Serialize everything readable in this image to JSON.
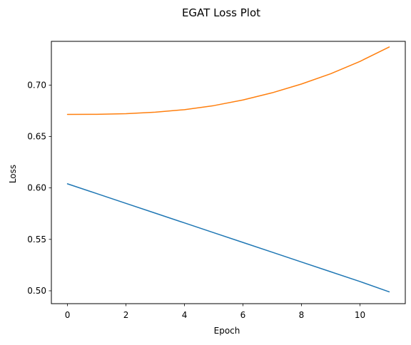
{
  "chart_data": {
    "type": "line",
    "title": "EGAT Loss Plot",
    "xlabel": "Epoch",
    "ylabel": "Loss",
    "x": [
      0,
      1,
      2,
      3,
      4,
      5,
      6,
      7,
      8,
      9,
      10,
      11
    ],
    "xlim": [
      -0.55,
      11.55
    ],
    "ylim": [
      0.4875,
      0.7425
    ],
    "xticks": [
      0,
      2,
      4,
      6,
      8,
      10
    ],
    "yticks": [
      0.5,
      0.55,
      0.6,
      0.65,
      0.7
    ],
    "xtick_labels": [
      "0",
      "2",
      "4",
      "6",
      "8",
      "10"
    ],
    "ytick_labels": [
      "0.50",
      "0.55",
      "0.60",
      "0.65",
      "0.70"
    ],
    "grid": false,
    "series": [
      {
        "color": "#1f77b4",
        "values": [
          0.604,
          0.5945,
          0.585,
          0.5755,
          0.566,
          0.5565,
          0.547,
          0.5375,
          0.528,
          0.5185,
          0.509,
          0.499
        ]
      },
      {
        "color": "#ff7f0e",
        "values": [
          0.6715,
          0.6716,
          0.6722,
          0.6736,
          0.6761,
          0.68,
          0.6855,
          0.6925,
          0.701,
          0.711,
          0.723,
          0.737
        ]
      }
    ]
  }
}
